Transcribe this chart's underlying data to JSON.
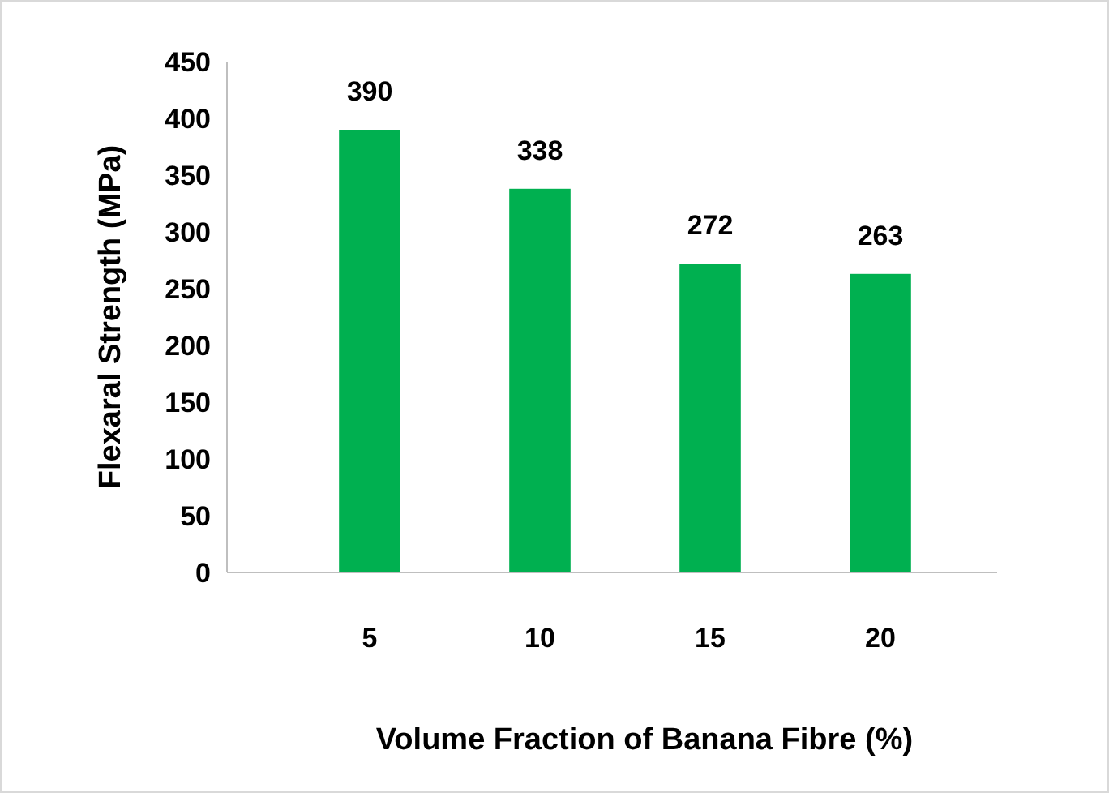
{
  "chart_data": {
    "type": "bar",
    "xlabel": "Volume Fraction of Banana Fibre (%)",
    "ylabel": "Flexaral Strength (MPa)",
    "categories": [
      "5",
      "10",
      "15",
      "20"
    ],
    "values": [
      390,
      338,
      272,
      263
    ],
    "color": "#00b050",
    "ylim": [
      0,
      450
    ],
    "yticks": [
      0,
      50,
      100,
      150,
      200,
      250,
      300,
      350,
      400,
      450
    ],
    "data_labels": true
  }
}
